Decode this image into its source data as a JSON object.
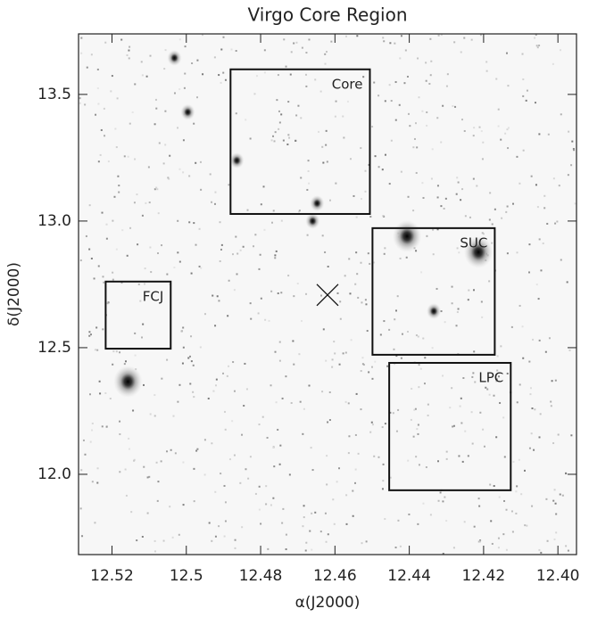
{
  "chart_data": {
    "type": "region-map",
    "title": "Virgo Core Region",
    "x_label": "α(J2000)",
    "y_label": "δ(J2000)",
    "xlim": [
      12.529,
      12.395
    ],
    "ylim": [
      11.683,
      13.739
    ],
    "xticks": [
      12.52,
      12.5,
      12.48,
      12.46,
      12.44,
      12.42,
      {
        "value": 12.4,
        "label": "12.40"
      }
    ],
    "yticks": [
      {
        "value": 12,
        "label": "12.0"
      },
      12.5,
      {
        "value": 13,
        "label": "13.0"
      },
      13.5
    ],
    "regions": [
      {
        "name": "Core",
        "x": [
          12.4881,
          12.4506
        ],
        "y": [
          13.028,
          13.599
        ]
      },
      {
        "name": "SUC",
        "x": [
          12.4499,
          12.417
        ],
        "y": [
          12.472,
          12.972
        ]
      },
      {
        "name": "LPC",
        "x": [
          12.4454,
          12.4127
        ],
        "y": [
          11.937,
          12.44
        ]
      },
      {
        "name": "FCJ",
        "x": [
          12.5217,
          12.5042
        ],
        "y": [
          12.496,
          12.761
        ]
      }
    ],
    "center": {
      "x": 12.462,
      "y": 12.708
    },
    "sources": {
      "x": [
        12.5157,
        12.4406,
        12.4214,
        12.5032,
        12.4996,
        12.4648,
        12.466,
        12.4334,
        12.4864
      ],
      "y": [
        12.366,
        12.94,
        12.877,
        13.644,
        13.43,
        13.07,
        13.0,
        12.644,
        13.239
      ]
    }
  }
}
